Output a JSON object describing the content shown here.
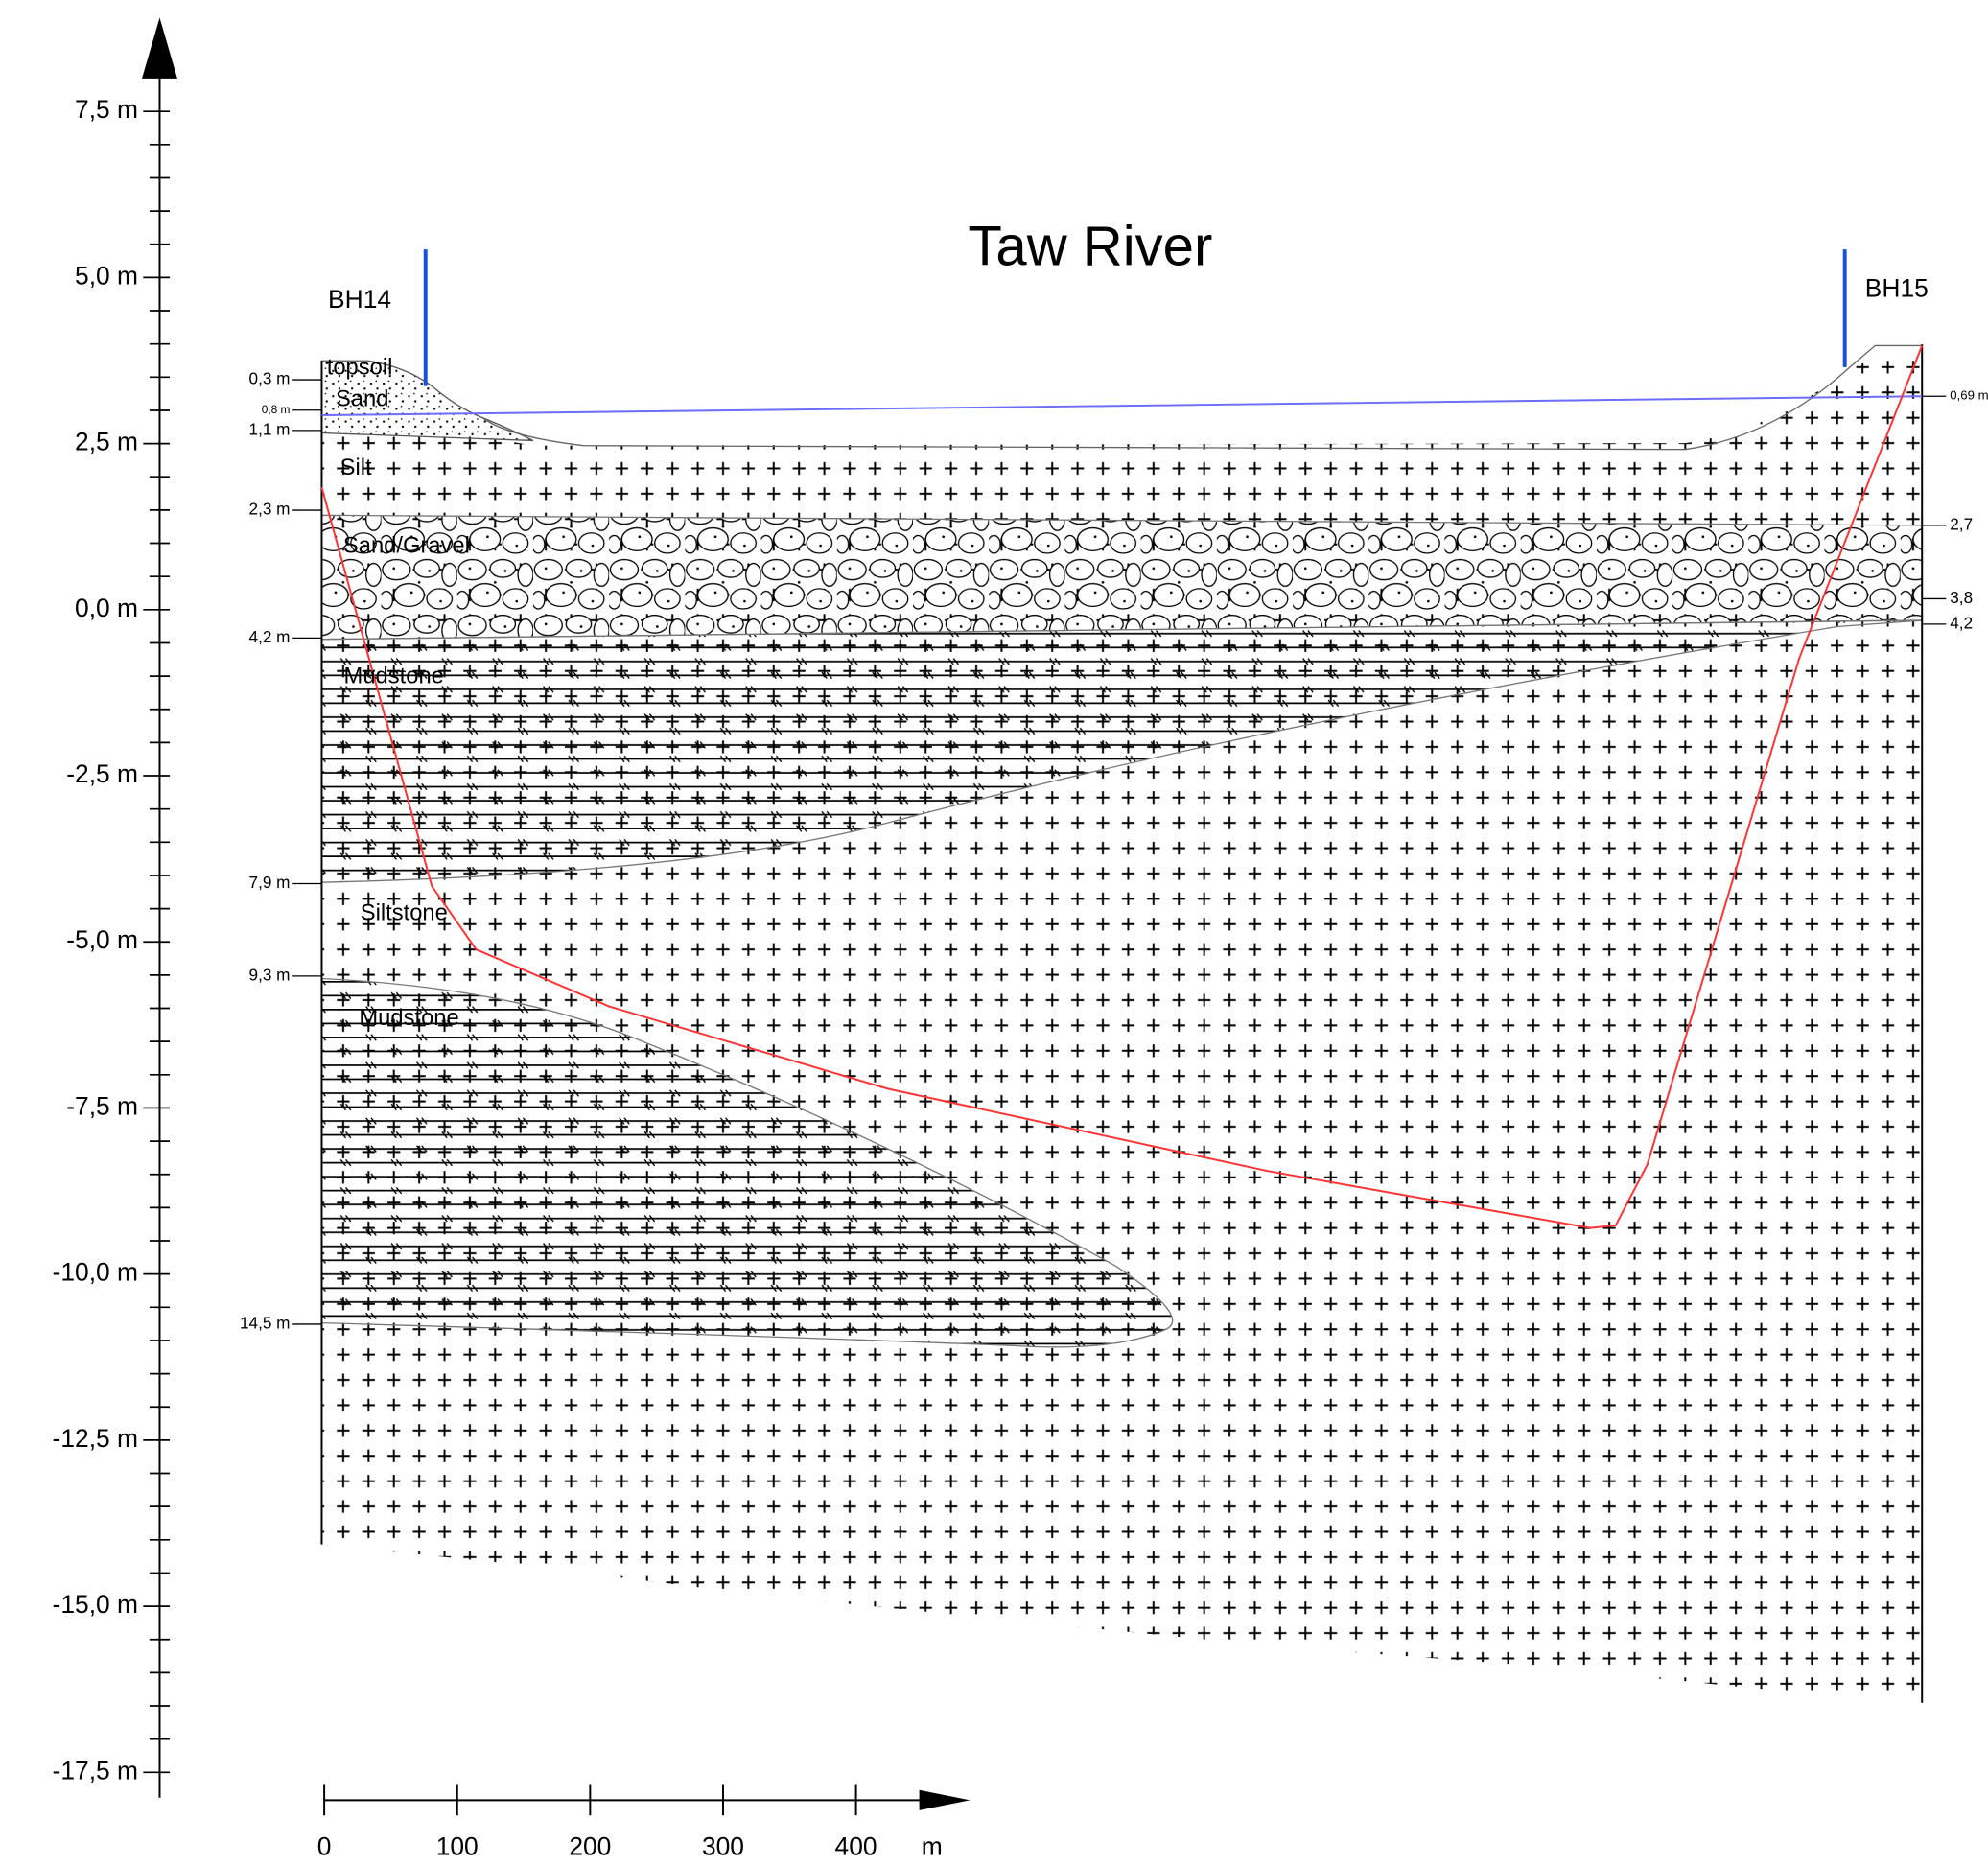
{
  "title": "Taw River",
  "boreholes": [
    "BH14",
    "BH15"
  ],
  "elevation_axis": {
    "labels": [
      "7,5 m",
      "5,0 m",
      "2,5 m",
      "0,0 m",
      "-2,5 m",
      "-5,0 m",
      "-7,5 m",
      "-10,0 m",
      "-12,5 m",
      "-15,0 m",
      "-17,5 m"
    ]
  },
  "left_depths": [
    "0,3 m",
    "0,8 m",
    "1,1 m",
    "2,3 m",
    "4,2 m",
    "7,9 m",
    "9,3 m",
    "14,5 m"
  ],
  "right_depths": [
    "0,69 m",
    "2,7",
    "3,8",
    "4,2"
  ],
  "layers": [
    "topsoil",
    "Sand",
    "Silt",
    "Sand/Gravel",
    "Mudstone",
    "Siltstone",
    "Mudstone"
  ],
  "distance_axis": {
    "labels": [
      "0",
      "100",
      "200",
      "300",
      "400"
    ],
    "unit": "m"
  }
}
